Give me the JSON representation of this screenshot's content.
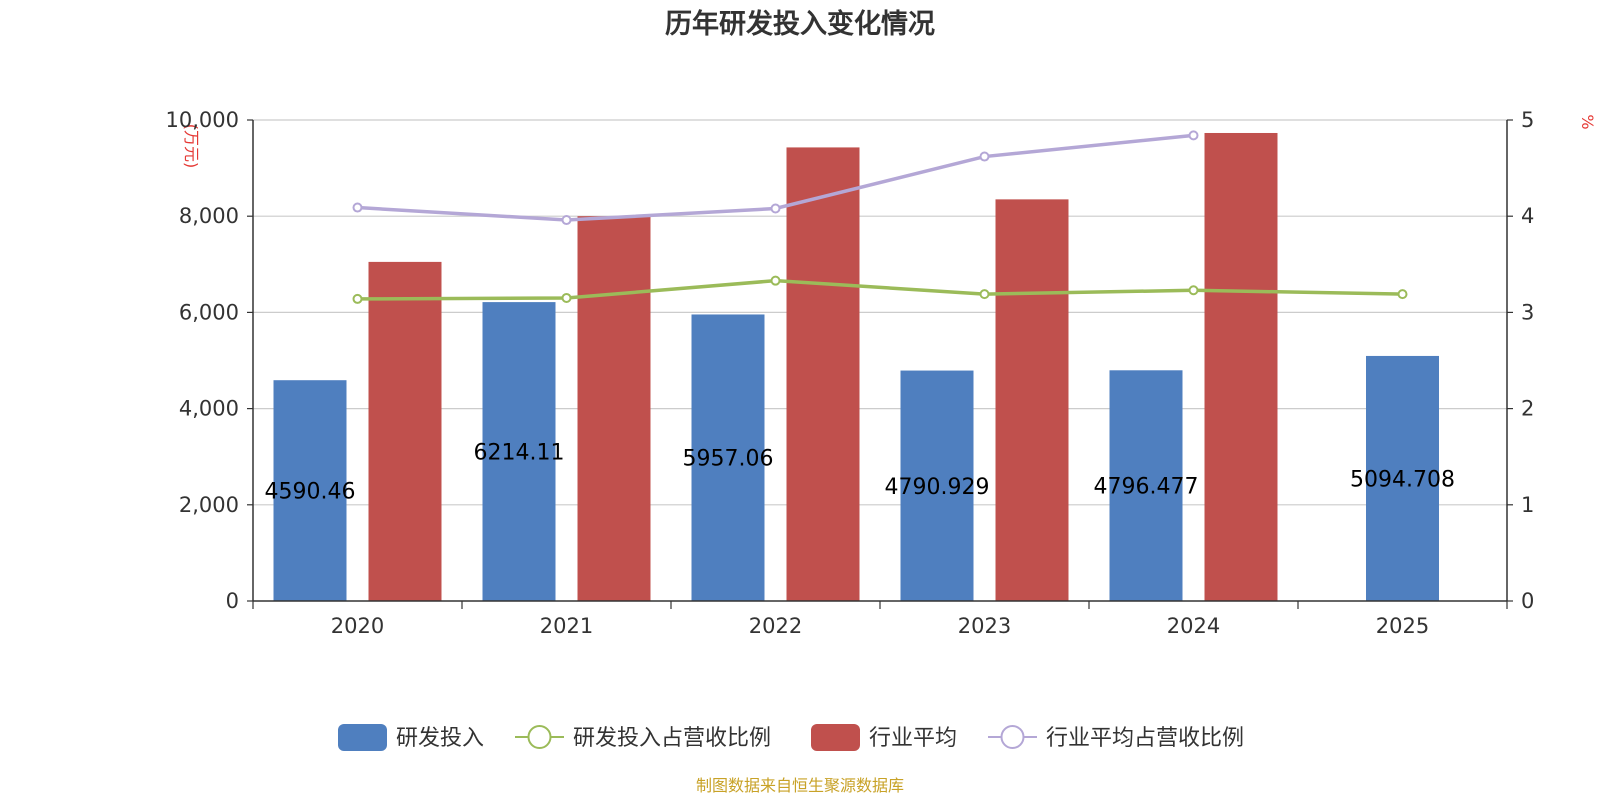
{
  "chart_data": {
    "type": "bar",
    "title": "历年研发投入变化情况",
    "categories": [
      "2020",
      "2021",
      "2022",
      "2023",
      "2024",
      "2025"
    ],
    "y_left": {
      "unit": "(万元)",
      "ylim": [
        0,
        10000
      ],
      "ticks": [
        "0",
        "2,000",
        "4,000",
        "6,000",
        "8,000",
        "10,000"
      ]
    },
    "y_right": {
      "unit": "%",
      "ylim": [
        0,
        5
      ],
      "ticks": [
        "0",
        "1",
        "2",
        "3",
        "4",
        "5"
      ]
    },
    "grid": true,
    "legend_position": "bottom",
    "series": [
      {
        "name": "研发投入",
        "kind": "bar",
        "axis": "left",
        "color": "#4f7fbf",
        "values": [
          4590.46,
          6214.11,
          5957.06,
          4790.929,
          4796.477,
          5094.708
        ],
        "labels": [
          "4590.46",
          "6214.11",
          "5957.06",
          "4790.929",
          "4796.477",
          "5094.708"
        ]
      },
      {
        "name": "研发投入占营收比例",
        "kind": "line",
        "axis": "right",
        "color": "#9bbb59",
        "values": [
          3.14,
          3.15,
          3.33,
          3.19,
          3.23,
          3.19
        ]
      },
      {
        "name": "行业平均",
        "kind": "bar",
        "axis": "left",
        "color": "#c0504d",
        "values": [
          7050,
          8000,
          9430,
          8350,
          9730,
          null
        ]
      },
      {
        "name": "行业平均占营收比例",
        "kind": "line",
        "axis": "right",
        "color": "#b4a7d6",
        "values": [
          4.09,
          3.96,
          4.08,
          4.62,
          4.84,
          null
        ]
      }
    ]
  },
  "footer": {
    "source": "制图数据来自恒生聚源数据库"
  }
}
